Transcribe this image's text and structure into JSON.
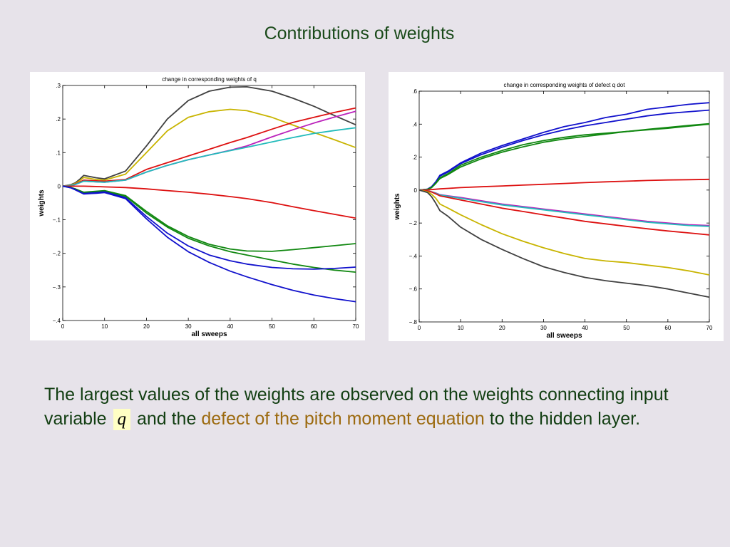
{
  "slide": {
    "title": "Contributions of weights",
    "text_part1": "The largest values of the weights are observed on the weights connecting input variable ",
    "symbol": "q",
    "text_part2": " and the ",
    "highlight": "defect of the pitch moment equation",
    "text_part3": " to the hidden layer."
  },
  "chart_data": [
    {
      "type": "line",
      "title": "change in corresponding weights of q",
      "xlabel": "all sweeps",
      "ylabel": "weights",
      "xlim": [
        0,
        70
      ],
      "ylim": [
        -0.4,
        0.3
      ],
      "xticks": [
        0,
        10,
        20,
        30,
        40,
        50,
        60,
        70
      ],
      "yticks": [
        -0.4,
        -0.3,
        -0.2,
        -0.1,
        0,
        0.1,
        0.2,
        0.3
      ],
      "grid": false,
      "x": [
        0,
        2,
        3,
        4,
        5,
        8,
        10,
        15,
        20,
        25,
        30,
        35,
        40,
        44,
        50,
        55,
        60,
        65,
        70
      ],
      "series": [
        {
          "color": "#404040",
          "values": [
            0,
            0.005,
            0.01,
            0.02,
            0.032,
            0.025,
            0.022,
            0.045,
            0.12,
            0.2,
            0.255,
            0.283,
            0.295,
            0.296,
            0.283,
            0.262,
            0.238,
            0.21,
            0.183
          ]
        },
        {
          "color": "#c8b400",
          "values": [
            0,
            0.004,
            0.008,
            0.016,
            0.026,
            0.02,
            0.018,
            0.036,
            0.1,
            0.165,
            0.205,
            0.222,
            0.229,
            0.225,
            0.205,
            0.182,
            0.16,
            0.138,
            0.115
          ]
        },
        {
          "color": "#dd1111",
          "values": [
            0,
            0.003,
            0.006,
            0.012,
            0.018,
            0.016,
            0.015,
            0.02,
            0.05,
            0.07,
            0.09,
            0.11,
            0.13,
            0.145,
            0.17,
            0.19,
            0.205,
            0.22,
            0.233
          ]
        },
        {
          "color": "#bb22bb",
          "values": [
            0,
            0.003,
            0.005,
            0.01,
            0.015,
            0.013,
            0.012,
            0.018,
            0.042,
            0.062,
            0.079,
            0.093,
            0.107,
            0.12,
            0.147,
            0.168,
            0.188,
            0.206,
            0.223
          ]
        },
        {
          "color": "#22bbbb",
          "values": [
            0,
            0.003,
            0.005,
            0.01,
            0.015,
            0.013,
            0.012,
            0.018,
            0.042,
            0.062,
            0.079,
            0.093,
            0.106,
            0.116,
            0.132,
            0.145,
            0.157,
            0.166,
            0.174
          ]
        },
        {
          "color": "#dd1111",
          "values": [
            0,
            0,
            0,
            0,
            0,
            -0.001,
            -0.002,
            -0.004,
            -0.008,
            -0.013,
            -0.018,
            -0.024,
            -0.031,
            -0.037,
            -0.049,
            -0.061,
            -0.073,
            -0.084,
            -0.095
          ]
        },
        {
          "color": "#118811",
          "values": [
            0,
            -0.004,
            -0.008,
            -0.013,
            -0.018,
            -0.015,
            -0.013,
            -0.028,
            -0.075,
            -0.118,
            -0.15,
            -0.173,
            -0.187,
            -0.193,
            -0.194,
            -0.189,
            -0.183,
            -0.177,
            -0.171
          ]
        },
        {
          "color": "#118811",
          "values": [
            0,
            -0.004,
            -0.008,
            -0.014,
            -0.02,
            -0.017,
            -0.015,
            -0.03,
            -0.08,
            -0.122,
            -0.155,
            -0.178,
            -0.195,
            -0.205,
            -0.22,
            -0.232,
            -0.242,
            -0.25,
            -0.256
          ]
        },
        {
          "color": "#1111cc",
          "values": [
            0,
            -0.005,
            -0.01,
            -0.016,
            -0.022,
            -0.019,
            -0.017,
            -0.034,
            -0.09,
            -0.14,
            -0.178,
            -0.205,
            -0.222,
            -0.232,
            -0.242,
            -0.246,
            -0.247,
            -0.245,
            -0.241
          ]
        },
        {
          "color": "#1111cc",
          "values": [
            0,
            -0.005,
            -0.011,
            -0.017,
            -0.023,
            -0.021,
            -0.019,
            -0.037,
            -0.097,
            -0.152,
            -0.195,
            -0.227,
            -0.253,
            -0.27,
            -0.293,
            -0.31,
            -0.324,
            -0.335,
            -0.344
          ]
        }
      ]
    },
    {
      "type": "line",
      "title": "change in corresponding weights of defect q dot",
      "xlabel": "all sweeps",
      "ylabel": "weights",
      "xlim": [
        0,
        70
      ],
      "ylim": [
        -0.8,
        0.6
      ],
      "xticks": [
        0,
        10,
        20,
        30,
        40,
        50,
        60,
        70
      ],
      "yticks": [
        -0.8,
        -0.6,
        -0.4,
        -0.2,
        0,
        0.2,
        0.4,
        0.6
      ],
      "grid": false,
      "x": [
        0,
        2,
        3,
        4,
        5,
        7,
        10,
        15,
        20,
        25,
        30,
        35,
        40,
        45,
        50,
        55,
        60,
        65,
        70
      ],
      "series": [
        {
          "color": "#1111cc",
          "values": [
            0,
            0.005,
            0.02,
            0.05,
            0.09,
            0.115,
            0.165,
            0.225,
            0.27,
            0.31,
            0.35,
            0.385,
            0.41,
            0.44,
            0.46,
            0.49,
            0.505,
            0.52,
            0.53
          ]
        },
        {
          "color": "#1111cc",
          "values": [
            0,
            0.005,
            0.02,
            0.05,
            0.085,
            0.11,
            0.16,
            0.215,
            0.26,
            0.3,
            0.335,
            0.365,
            0.39,
            0.41,
            0.43,
            0.45,
            0.465,
            0.475,
            0.485
          ]
        },
        {
          "color": "#118811",
          "values": [
            0,
            0.004,
            0.016,
            0.042,
            0.075,
            0.1,
            0.15,
            0.2,
            0.24,
            0.275,
            0.3,
            0.32,
            0.335,
            0.345,
            0.355,
            0.365,
            0.375,
            0.388,
            0.4
          ]
        },
        {
          "color": "#118811",
          "values": [
            0,
            0.004,
            0.015,
            0.04,
            0.07,
            0.095,
            0.14,
            0.19,
            0.23,
            0.262,
            0.29,
            0.31,
            0.325,
            0.34,
            0.355,
            0.368,
            0.38,
            0.392,
            0.403
          ]
        },
        {
          "color": "#dd1111",
          "values": [
            0,
            0.001,
            0.003,
            0.005,
            0.007,
            0.01,
            0.015,
            0.02,
            0.025,
            0.03,
            0.035,
            0.04,
            0.045,
            0.05,
            0.054,
            0.058,
            0.061,
            0.063,
            0.065
          ]
        },
        {
          "color": "#bb22bb",
          "values": [
            0,
            -0.004,
            -0.01,
            -0.018,
            -0.028,
            -0.035,
            -0.045,
            -0.065,
            -0.085,
            -0.1,
            -0.115,
            -0.13,
            -0.145,
            -0.16,
            -0.175,
            -0.19,
            -0.2,
            -0.21,
            -0.215
          ]
        },
        {
          "color": "#22bbbb",
          "values": [
            0,
            -0.004,
            -0.01,
            -0.02,
            -0.03,
            -0.038,
            -0.05,
            -0.07,
            -0.09,
            -0.105,
            -0.12,
            -0.135,
            -0.15,
            -0.165,
            -0.18,
            -0.195,
            -0.205,
            -0.215,
            -0.22
          ]
        },
        {
          "color": "#dd1111",
          "values": [
            0,
            -0.005,
            -0.012,
            -0.023,
            -0.035,
            -0.045,
            -0.06,
            -0.085,
            -0.11,
            -0.13,
            -0.15,
            -0.17,
            -0.19,
            -0.205,
            -0.22,
            -0.235,
            -0.248,
            -0.26,
            -0.272
          ]
        },
        {
          "color": "#c8b400",
          "values": [
            0,
            -0.01,
            -0.025,
            -0.05,
            -0.085,
            -0.11,
            -0.15,
            -0.21,
            -0.265,
            -0.31,
            -0.35,
            -0.385,
            -0.415,
            -0.43,
            -0.44,
            -0.455,
            -0.47,
            -0.49,
            -0.515
          ]
        },
        {
          "color": "#404040",
          "values": [
            0,
            -0.015,
            -0.04,
            -0.08,
            -0.125,
            -0.16,
            -0.225,
            -0.3,
            -0.36,
            -0.415,
            -0.465,
            -0.5,
            -0.53,
            -0.55,
            -0.565,
            -0.58,
            -0.6,
            -0.625,
            -0.65
          ]
        }
      ]
    }
  ]
}
